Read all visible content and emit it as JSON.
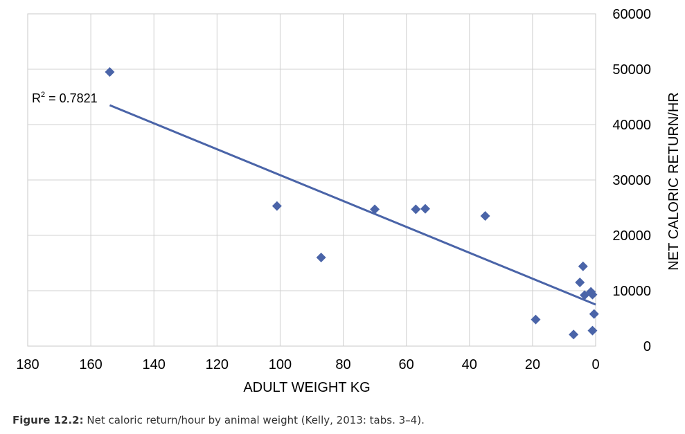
{
  "chart_data": {
    "type": "scatter",
    "title": "",
    "xlabel": "ADULT WEIGHT KG",
    "ylabel": "NET CALORIC RETURN/HR",
    "x_reversed": true,
    "xlim": [
      0,
      180
    ],
    "ylim": [
      0,
      60000
    ],
    "x_ticks": [
      "180",
      "160",
      "140",
      "120",
      "100",
      "80",
      "60",
      "40",
      "20",
      "0"
    ],
    "y_ticks": [
      "0",
      "10000",
      "20000",
      "30000",
      "40000",
      "50000",
      "60000"
    ],
    "grid": true,
    "y_axis_side": "right",
    "marker": "diamond",
    "color": "#4a64a8",
    "points": [
      {
        "x": 154,
        "y": 49500
      },
      {
        "x": 101,
        "y": 25300
      },
      {
        "x": 87,
        "y": 16000
      },
      {
        "x": 70,
        "y": 24700
      },
      {
        "x": 57,
        "y": 24700
      },
      {
        "x": 54,
        "y": 24800
      },
      {
        "x": 35,
        "y": 23500
      },
      {
        "x": 19,
        "y": 4800
      },
      {
        "x": 7,
        "y": 2100
      },
      {
        "x": 5,
        "y": 11500
      },
      {
        "x": 4,
        "y": 14400
      },
      {
        "x": 3.5,
        "y": 9200
      },
      {
        "x": 1.5,
        "y": 9800
      },
      {
        "x": 1,
        "y": 9300
      },
      {
        "x": 1,
        "y": 2800
      },
      {
        "x": 0.5,
        "y": 5800
      }
    ],
    "trendline": {
      "type": "linear",
      "x": [
        154,
        0
      ],
      "y": [
        43500,
        7500
      ],
      "label": "R² = 0.7821"
    }
  },
  "caption": {
    "label": "Figure 12.2:",
    "text": " Net caloric return/hour by animal weight (Kelly, 2013: tabs. 3–4)."
  }
}
